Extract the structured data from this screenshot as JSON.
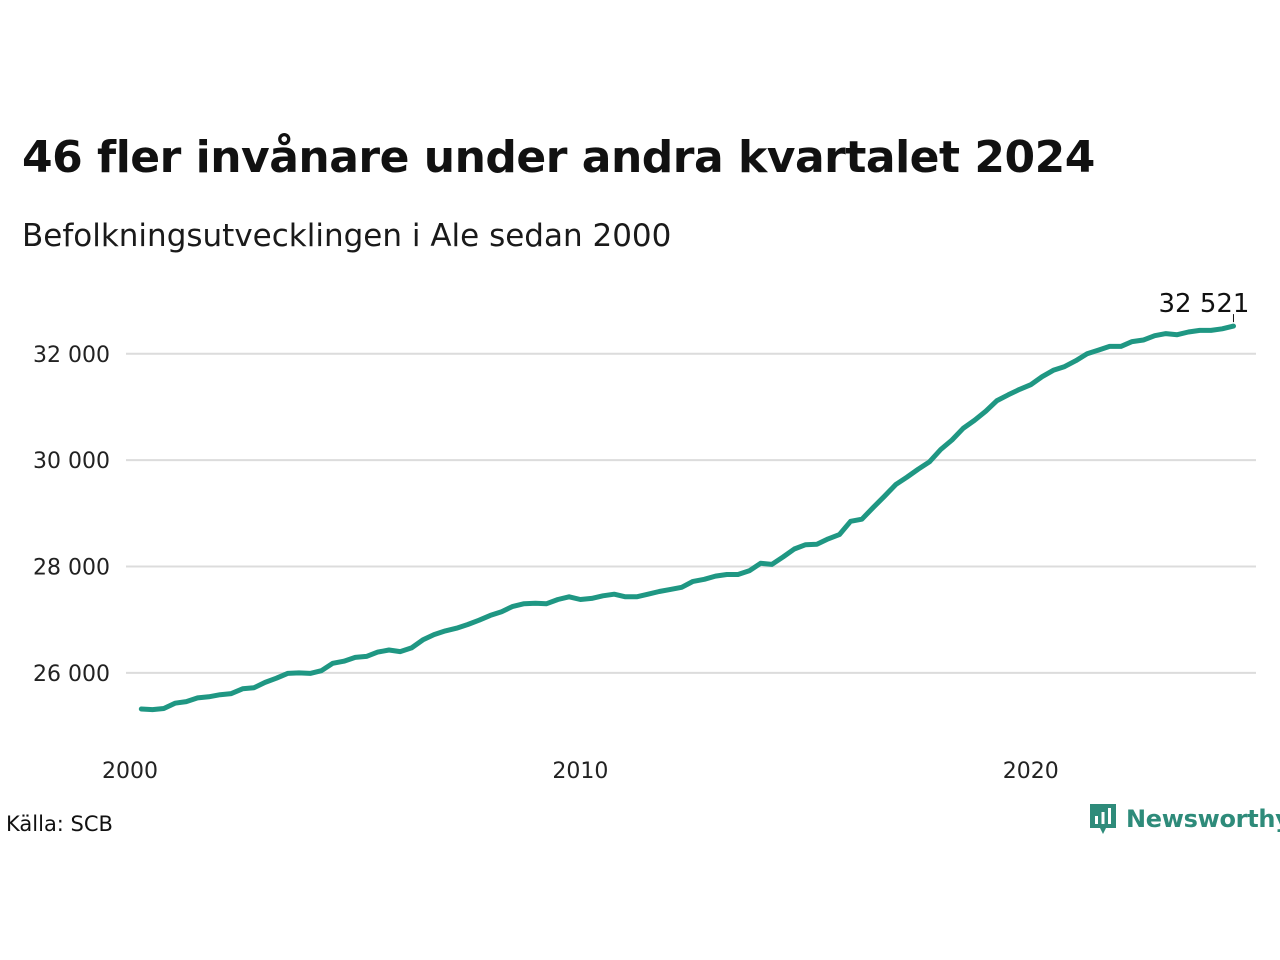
{
  "title": "46 fler invånare under andra kvartalet 2024",
  "subtitle": "Befolkningsutvecklingen i Ale sedan 2000",
  "source": "Källa: SCB",
  "brand": "Newsworthy",
  "colors": {
    "line": "#1f9783",
    "grid": "#dcdcdc",
    "brand": "#2e8b7a"
  },
  "chart_data": {
    "type": "line",
    "x_tick_labels": [
      "2000",
      "2010",
      "2020"
    ],
    "y_tick_labels": [
      "26 000",
      "28 000",
      "30 000",
      "32 000"
    ],
    "y_ticks": [
      26000,
      28000,
      30000,
      32000
    ],
    "x_ticks": [
      2000,
      2010,
      2020
    ],
    "xlim": [
      2000,
      2025
    ],
    "ylim": [
      24700,
      33200
    ],
    "grid": true,
    "end_label": "32 521",
    "series": [
      {
        "x": [
          2000.25,
          2000.5,
          2000.75,
          2001.0,
          2001.25,
          2001.5,
          2001.75,
          2002.0,
          2002.25,
          2002.5,
          2002.75,
          2003.0,
          2003.25,
          2003.5,
          2003.75,
          2004.0,
          2004.25,
          2004.5,
          2004.75,
          2005.0,
          2005.25,
          2005.5,
          2005.75,
          2006.0,
          2006.25,
          2006.5,
          2006.75,
          2007.0,
          2007.25,
          2007.5,
          2007.75,
          2008.0,
          2008.25,
          2008.5,
          2008.75,
          2009.0,
          2009.25,
          2009.5,
          2009.75,
          2010.0,
          2010.25,
          2010.5,
          2010.75,
          2011.0,
          2011.25,
          2011.5,
          2011.75,
          2012.0,
          2012.25,
          2012.5,
          2012.75,
          2013.0,
          2013.25,
          2013.5,
          2013.75,
          2014.0,
          2014.25,
          2014.5,
          2014.75,
          2015.0,
          2015.25,
          2015.5,
          2015.75,
          2016.0,
          2016.25,
          2016.5,
          2016.75,
          2017.0,
          2017.25,
          2017.5,
          2017.75,
          2018.0,
          2018.25,
          2018.5,
          2018.75,
          2019.0,
          2019.25,
          2019.5,
          2019.75,
          2020.0,
          2020.25,
          2020.5,
          2020.75,
          2021.0,
          2021.25,
          2021.5,
          2021.75,
          2022.0,
          2022.25,
          2022.5,
          2022.75,
          2023.0,
          2023.25,
          2023.5,
          2023.75,
          2024.0,
          2024.25,
          2024.5
        ],
        "values": [
          25320,
          25310,
          25330,
          25430,
          25460,
          25530,
          25550,
          25590,
          25610,
          25700,
          25720,
          25820,
          25900,
          25990,
          26000,
          25990,
          26040,
          26180,
          26220,
          26290,
          26310,
          26390,
          26430,
          26400,
          26470,
          26620,
          26720,
          26790,
          26840,
          26910,
          26990,
          27080,
          27150,
          27250,
          27300,
          27310,
          27300,
          27380,
          27430,
          27380,
          27400,
          27450,
          27480,
          27430,
          27430,
          27480,
          27530,
          27570,
          27610,
          27720,
          27760,
          27820,
          27850,
          27850,
          27920,
          28060,
          28040,
          28180,
          28330,
          28410,
          28420,
          28520,
          28600,
          28850,
          28890,
          29110,
          29320,
          29540,
          29680,
          29830,
          29970,
          30200,
          30380,
          30600,
          30750,
          30920,
          31120,
          31230,
          31330,
          31420,
          31570,
          31690,
          31760,
          31870,
          32000,
          32070,
          32140,
          32140,
          32230,
          32260,
          32340,
          32380,
          32360,
          32410,
          32440,
          32440,
          32470,
          32521
        ]
      }
    ]
  }
}
